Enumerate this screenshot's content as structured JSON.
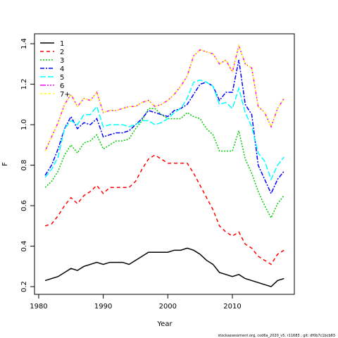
{
  "chart_data": {
    "type": "line",
    "xlabel": "Year",
    "ylabel": "F",
    "footer": "stockassessment.org, cod6a_2020_v5, r11683 , git: df0b7c1bcb83",
    "x": [
      1981,
      1982,
      1983,
      1984,
      1985,
      1986,
      1987,
      1988,
      1989,
      1990,
      1991,
      1992,
      1993,
      1994,
      1995,
      1996,
      1997,
      1998,
      1999,
      2000,
      2001,
      2002,
      2003,
      2004,
      2005,
      2006,
      2007,
      2008,
      2009,
      2010,
      2011,
      2012,
      2013,
      2014,
      2015,
      2016,
      2017,
      2018
    ],
    "xlim": [
      1979.35,
      2019.6
    ],
    "xticks": [
      1980,
      1990,
      2000,
      2010
    ],
    "ylim": [
      0.162,
      1.449
    ],
    "yticks": [
      0.2,
      0.4,
      0.6,
      0.8,
      {
        "value": 1,
        "label": "1.0"
      },
      1.2,
      1.4
    ],
    "legend": "top-left",
    "series": [
      {
        "name": "1",
        "color": "#000000",
        "values": [
          0.23,
          0.24,
          0.25,
          0.27,
          0.29,
          0.28,
          0.3,
          0.31,
          0.32,
          0.31,
          0.32,
          0.32,
          0.32,
          0.31,
          0.33,
          0.35,
          0.37,
          0.37,
          0.37,
          0.37,
          0.38,
          0.38,
          0.39,
          0.38,
          0.36,
          0.33,
          0.31,
          0.27,
          0.26,
          0.25,
          0.26,
          0.24,
          0.23,
          0.22,
          0.21,
          0.2,
          0.23,
          0.24
        ]
      },
      {
        "name": "2",
        "color": "#ff0000",
        "values": [
          0.5,
          0.51,
          0.55,
          0.6,
          0.64,
          0.61,
          0.65,
          0.67,
          0.7,
          0.66,
          0.69,
          0.69,
          0.69,
          0.69,
          0.72,
          0.78,
          0.83,
          0.85,
          0.83,
          0.81,
          0.81,
          0.81,
          0.81,
          0.76,
          0.7,
          0.64,
          0.58,
          0.5,
          0.47,
          0.45,
          0.47,
          0.41,
          0.39,
          0.35,
          0.33,
          0.31,
          0.36,
          0.38
        ]
      },
      {
        "name": "3",
        "color": "#00cd00",
        "values": [
          0.69,
          0.72,
          0.77,
          0.85,
          0.9,
          0.86,
          0.91,
          0.92,
          0.95,
          0.88,
          0.9,
          0.92,
          0.92,
          0.93,
          0.98,
          1.02,
          1.08,
          1.08,
          1.05,
          1.03,
          1.03,
          1.03,
          1.06,
          1.04,
          1.03,
          0.98,
          0.95,
          0.87,
          0.87,
          0.87,
          0.97,
          0.83,
          0.76,
          0.67,
          0.6,
          0.54,
          0.61,
          0.65
        ]
      },
      {
        "name": "4",
        "color": "#0000ff",
        "values": [
          0.75,
          0.8,
          0.88,
          0.98,
          1.04,
          0.98,
          1.01,
          1.0,
          1.03,
          0.94,
          0.95,
          0.96,
          0.96,
          0.97,
          1.0,
          1.03,
          1.07,
          1.06,
          1.05,
          1.04,
          1.07,
          1.08,
          1.1,
          1.15,
          1.2,
          1.21,
          1.19,
          1.12,
          1.16,
          1.16,
          1.32,
          1.1,
          1.05,
          0.8,
          0.73,
          0.66,
          0.73,
          0.77
        ]
      },
      {
        "name": "5",
        "color": "#00ffff",
        "values": [
          0.74,
          0.78,
          0.84,
          0.98,
          1.02,
          1.0,
          1.05,
          1.05,
          1.09,
          0.99,
          1.0,
          1.0,
          1.0,
          0.99,
          1.0,
          1.02,
          1.02,
          1.0,
          1.01,
          1.03,
          1.06,
          1.08,
          1.13,
          1.21,
          1.22,
          1.21,
          1.19,
          1.1,
          1.11,
          1.08,
          1.18,
          1.06,
          0.99,
          0.86,
          0.82,
          0.73,
          0.8,
          0.84
        ]
      },
      {
        "name": "6",
        "color": "#ff00ff",
        "values": [
          0.87,
          0.94,
          1.01,
          1.1,
          1.15,
          1.09,
          1.13,
          1.12,
          1.16,
          1.06,
          1.07,
          1.07,
          1.08,
          1.09,
          1.09,
          1.11,
          1.12,
          1.09,
          1.1,
          1.12,
          1.15,
          1.19,
          1.24,
          1.34,
          1.37,
          1.36,
          1.35,
          1.3,
          1.32,
          1.26,
          1.39,
          1.3,
          1.28,
          1.09,
          1.06,
          0.99,
          1.08,
          1.13
        ]
      },
      {
        "name": "7+",
        "color": "#ffff00",
        "values": [
          0.87,
          0.94,
          1.01,
          1.1,
          1.15,
          1.09,
          1.13,
          1.12,
          1.16,
          1.06,
          1.07,
          1.07,
          1.08,
          1.09,
          1.09,
          1.11,
          1.12,
          1.09,
          1.1,
          1.12,
          1.15,
          1.19,
          1.24,
          1.34,
          1.37,
          1.36,
          1.35,
          1.3,
          1.32,
          1.26,
          1.39,
          1.3,
          1.28,
          1.09,
          1.06,
          0.99,
          1.08,
          1.13
        ]
      }
    ]
  }
}
